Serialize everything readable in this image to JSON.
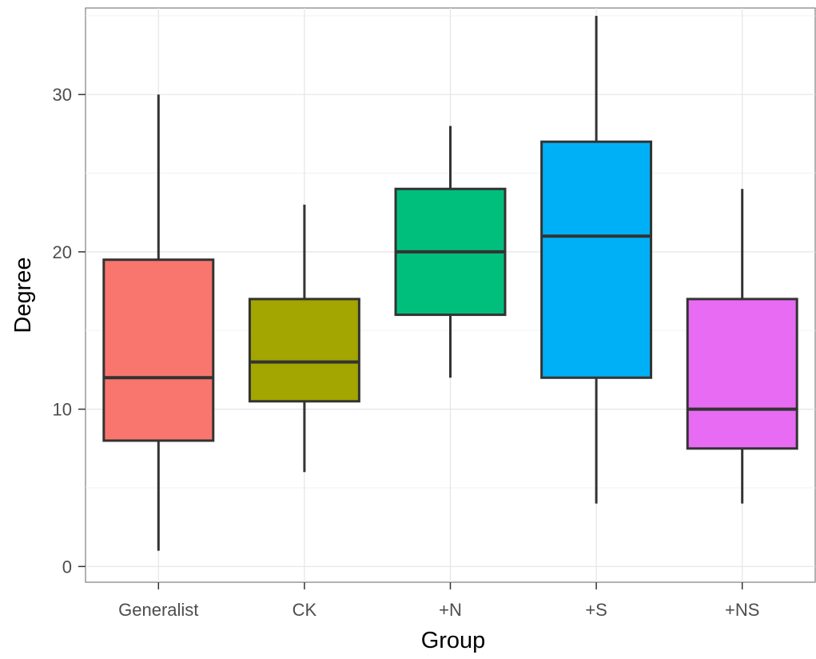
{
  "chart_data": {
    "type": "boxplot",
    "title": "",
    "xlabel": "Group",
    "ylabel": "Degree",
    "ylim": [
      -1,
      35.5
    ],
    "yticks": [
      0,
      10,
      20,
      30
    ],
    "grid": true,
    "legend": "none",
    "categories": [
      "Generalist",
      "CK",
      "+N",
      "+S",
      "+NS"
    ],
    "boxes": [
      {
        "category": "Generalist",
        "min": 1,
        "q1": 8,
        "median": 12,
        "q3": 19.5,
        "max": 30,
        "color": "#F8766D"
      },
      {
        "category": "CK",
        "min": 6,
        "q1": 10.5,
        "median": 13,
        "q3": 17,
        "max": 23,
        "color": "#A3A500"
      },
      {
        "category": "+N",
        "min": 12,
        "q1": 16,
        "median": 20,
        "q3": 24,
        "max": 28,
        "color": "#00BF7D"
      },
      {
        "category": "+S",
        "min": 4,
        "q1": 12,
        "median": 21,
        "q3": 27,
        "max": 35,
        "color": "#00B0F6"
      },
      {
        "category": "+NS",
        "min": 4,
        "q1": 7.5,
        "median": 10,
        "q3": 17,
        "max": 24,
        "color": "#E76BF3"
      }
    ]
  }
}
